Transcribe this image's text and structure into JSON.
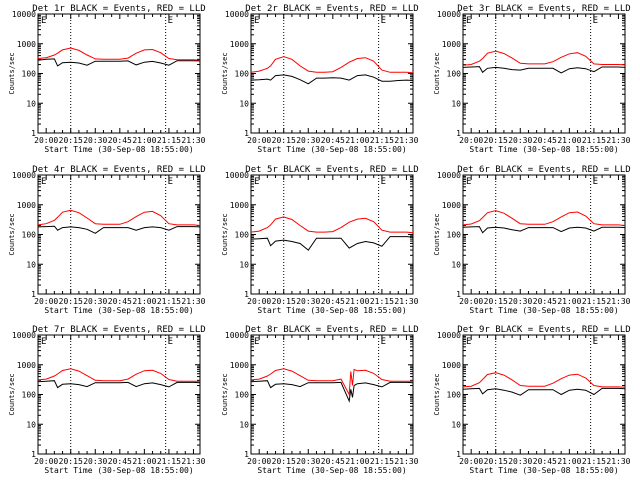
{
  "colors": {
    "events": "#000000",
    "lld": "#ff0000",
    "background": "#ffffff",
    "axes": "#000000"
  },
  "shared": {
    "ylabel": "Counts/sec",
    "xlabel": "Start Time (30-Sep-08 18:55:00)",
    "x_ticks": [
      "20:00",
      "20:15",
      "20:30",
      "20:45",
      "21:00",
      "21:15",
      "21:30"
    ],
    "y_ticks": [
      "1",
      "10",
      "100",
      "1000",
      "10000"
    ],
    "y_scale": "log",
    "ylim": [
      1,
      10000
    ],
    "xlim": [
      "19:55",
      "21:34"
    ],
    "dotted_vlines": [
      "20:15",
      "21:13"
    ],
    "corner_marks": [
      "E",
      "E"
    ]
  },
  "chart_data": [
    {
      "type": "line",
      "title": "Det 1r BLACK = Events, RED = LLD",
      "x": [
        "19:55",
        "20:00",
        "20:05",
        "20:07",
        "20:10",
        "20:15",
        "20:20",
        "20:25",
        "20:30",
        "20:35",
        "20:40",
        "20:45",
        "20:50",
        "20:55",
        "21:00",
        "21:05",
        "21:10",
        "21:15",
        "21:20",
        "21:25",
        "21:30",
        "21:34"
      ],
      "series": [
        {
          "name": "Events",
          "values": [
            280,
            300,
            310,
            180,
            230,
            240,
            225,
            190,
            260,
            260,
            260,
            260,
            265,
            195,
            240,
            255,
            225,
            190,
            270,
            270,
            270,
            265
          ]
        },
        {
          "name": "LLD",
          "values": [
            320,
            340,
            420,
            480,
            620,
            720,
            600,
            420,
            310,
            300,
            300,
            300,
            330,
            480,
            620,
            640,
            500,
            320,
            290,
            290,
            290,
            280
          ]
        }
      ]
    },
    {
      "type": "line",
      "title": "Det 2r BLACK = Events, RED = LLD",
      "x": [
        "19:55",
        "20:00",
        "20:05",
        "20:07",
        "20:10",
        "20:15",
        "20:20",
        "20:25",
        "20:30",
        "20:35",
        "20:40",
        "20:45",
        "20:50",
        "20:55",
        "21:00",
        "21:05",
        "21:10",
        "21:15",
        "21:20",
        "21:25",
        "21:30",
        "21:34"
      ],
      "series": [
        {
          "name": "Events",
          "values": [
            60,
            62,
            65,
            60,
            85,
            90,
            80,
            62,
            45,
            70,
            70,
            72,
            70,
            60,
            85,
            90,
            75,
            55,
            55,
            58,
            60,
            58
          ]
        },
        {
          "name": "LLD",
          "values": [
            110,
            120,
            150,
            180,
            300,
            370,
            300,
            180,
            120,
            110,
            110,
            115,
            160,
            240,
            320,
            340,
            260,
            130,
            110,
            110,
            110,
            105
          ]
        }
      ]
    },
    {
      "type": "line",
      "title": "Det 3r BLACK = Events, RED = LLD",
      "x": [
        "19:55",
        "20:00",
        "20:05",
        "20:07",
        "20:10",
        "20:15",
        "20:20",
        "20:25",
        "20:30",
        "20:35",
        "20:40",
        "20:45",
        "20:50",
        "20:55",
        "21:00",
        "21:05",
        "21:10",
        "21:15",
        "21:20",
        "21:25",
        "21:30",
        "21:34"
      ],
      "series": [
        {
          "name": "Events",
          "values": [
            160,
            165,
            170,
            110,
            150,
            160,
            150,
            135,
            130,
            150,
            150,
            150,
            150,
            105,
            145,
            155,
            145,
            115,
            165,
            165,
            165,
            160
          ]
        },
        {
          "name": "LLD",
          "values": [
            190,
            200,
            260,
            320,
            480,
            560,
            470,
            330,
            220,
            210,
            210,
            210,
            250,
            350,
            460,
            500,
            380,
            210,
            200,
            200,
            200,
            195
          ]
        }
      ]
    },
    {
      "type": "line",
      "title": "Det 4r BLACK = Events, RED = LLD",
      "x": [
        "19:55",
        "20:00",
        "20:05",
        "20:07",
        "20:10",
        "20:15",
        "20:20",
        "20:25",
        "20:30",
        "20:35",
        "20:40",
        "20:45",
        "20:50",
        "20:55",
        "21:00",
        "21:05",
        "21:10",
        "21:15",
        "21:20",
        "21:25",
        "21:30",
        "21:34"
      ],
      "series": [
        {
          "name": "Events",
          "values": [
            180,
            185,
            190,
            140,
            170,
            180,
            170,
            150,
            110,
            170,
            170,
            170,
            170,
            140,
            170,
            180,
            170,
            140,
            185,
            185,
            185,
            180
          ]
        },
        {
          "name": "LLD",
          "values": [
            210,
            230,
            300,
            380,
            560,
            650,
            540,
            360,
            230,
            220,
            220,
            220,
            270,
            400,
            560,
            600,
            430,
            230,
            210,
            210,
            210,
            200
          ]
        }
      ]
    },
    {
      "type": "line",
      "title": "Det 5r BLACK = Events, RED = LLD",
      "x": [
        "19:55",
        "20:00",
        "20:05",
        "20:07",
        "20:10",
        "20:15",
        "20:20",
        "20:25",
        "20:30",
        "20:35",
        "20:40",
        "20:45",
        "20:50",
        "20:55",
        "21:00",
        "21:05",
        "21:10",
        "21:15",
        "21:20",
        "21:25",
        "21:30",
        "21:34"
      ],
      "series": [
        {
          "name": "Events",
          "values": [
            70,
            72,
            75,
            42,
            60,
            65,
            58,
            50,
            30,
            75,
            75,
            75,
            75,
            35,
            50,
            58,
            52,
            40,
            85,
            85,
            85,
            82
          ]
        },
        {
          "name": "LLD",
          "values": [
            120,
            130,
            170,
            210,
            330,
            390,
            320,
            200,
            130,
            120,
            120,
            125,
            170,
            260,
            330,
            350,
            270,
            140,
            120,
            120,
            120,
            115
          ]
        }
      ]
    },
    {
      "type": "line",
      "title": "Det 6r BLACK = Events, RED = LLD",
      "x": [
        "19:55",
        "20:00",
        "20:05",
        "20:07",
        "20:10",
        "20:15",
        "20:20",
        "20:25",
        "20:30",
        "20:35",
        "20:40",
        "20:45",
        "20:50",
        "20:55",
        "21:00",
        "21:05",
        "21:10",
        "21:15",
        "21:20",
        "21:25",
        "21:30",
        "21:34"
      ],
      "series": [
        {
          "name": "Events",
          "values": [
            175,
            180,
            185,
            115,
            165,
            175,
            165,
            145,
            130,
            170,
            170,
            170,
            170,
            125,
            165,
            175,
            165,
            130,
            175,
            175,
            175,
            170
          ]
        },
        {
          "name": "LLD",
          "values": [
            210,
            225,
            290,
            370,
            540,
            630,
            520,
            350,
            230,
            220,
            220,
            220,
            270,
            390,
            540,
            570,
            420,
            230,
            210,
            210,
            210,
            200
          ]
        }
      ]
    },
    {
      "type": "line",
      "title": "Det 7r BLACK = Events, RED = LLD",
      "x": [
        "19:55",
        "20:00",
        "20:05",
        "20:07",
        "20:10",
        "20:15",
        "20:20",
        "20:25",
        "20:30",
        "20:35",
        "20:40",
        "20:45",
        "20:50",
        "20:55",
        "21:00",
        "21:05",
        "21:10",
        "21:15",
        "21:20",
        "21:25",
        "21:30",
        "21:34"
      ],
      "series": [
        {
          "name": "Events",
          "values": [
            270,
            280,
            290,
            170,
            220,
            230,
            215,
            185,
            250,
            250,
            250,
            250,
            255,
            185,
            230,
            245,
            215,
            180,
            255,
            255,
            255,
            250
          ]
        },
        {
          "name": "LLD",
          "values": [
            310,
            330,
            420,
            490,
            640,
            730,
            610,
            430,
            300,
            290,
            290,
            290,
            330,
            480,
            630,
            650,
            510,
            320,
            280,
            280,
            280,
            275
          ]
        }
      ]
    },
    {
      "type": "line",
      "title": "Det 8r BLACK = Events, RED = LLD",
      "x": [
        "19:55",
        "20:00",
        "20:05",
        "20:07",
        "20:10",
        "20:15",
        "20:20",
        "20:25",
        "20:30",
        "20:35",
        "20:40",
        "20:45",
        "20:50",
        "20:55",
        "20:56",
        "20:57",
        "20:58",
        "21:00",
        "21:05",
        "21:10",
        "21:15",
        "21:20",
        "21:25",
        "21:30",
        "21:34"
      ],
      "series": [
        {
          "name": "Events",
          "values": [
            270,
            280,
            290,
            170,
            220,
            230,
            215,
            185,
            250,
            250,
            250,
            250,
            255,
            60,
            150,
            80,
            200,
            230,
            245,
            215,
            180,
            255,
            255,
            255,
            250
          ]
        },
        {
          "name": "LLD",
          "values": [
            310,
            330,
            420,
            490,
            640,
            730,
            610,
            430,
            300,
            290,
            290,
            290,
            330,
            100,
            600,
            200,
            700,
            630,
            650,
            510,
            320,
            280,
            280,
            280,
            275
          ]
        }
      ]
    },
    {
      "type": "line",
      "title": "Det 9r BLACK = Events, RED = LLD",
      "x": [
        "19:55",
        "20:00",
        "20:05",
        "20:07",
        "20:10",
        "20:15",
        "20:20",
        "20:25",
        "20:30",
        "20:35",
        "20:40",
        "20:45",
        "20:50",
        "20:55",
        "21:00",
        "21:05",
        "21:10",
        "21:15",
        "21:20",
        "21:25",
        "21:30",
        "21:34"
      ],
      "series": [
        {
          "name": "Events",
          "values": [
            150,
            155,
            160,
            105,
            145,
            155,
            140,
            120,
            95,
            145,
            145,
            145,
            145,
            100,
            140,
            150,
            140,
            100,
            160,
            160,
            160,
            155
          ]
        },
        {
          "name": "LLD",
          "values": [
            180,
            190,
            250,
            320,
            470,
            540,
            450,
            310,
            200,
            190,
            190,
            190,
            240,
            340,
            450,
            480,
            360,
            200,
            180,
            180,
            180,
            175
          ]
        }
      ]
    }
  ]
}
